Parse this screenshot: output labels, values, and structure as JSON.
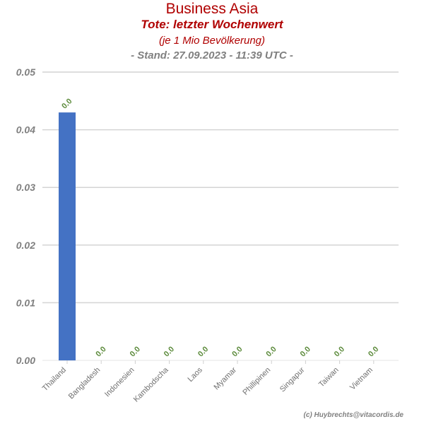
{
  "chart_data": {
    "type": "bar",
    "title": "Business Asia",
    "subtitle": "Tote: letzter Wochenwert",
    "subtitle2": "(je 1 Mio Bevölkerung)",
    "stand": "- Stand: 27.09.2023 - 11:39 UTC -",
    "categories": [
      "Thailand",
      "Bangladesh",
      "Indonesien",
      "Kambodscha",
      "Laos",
      "Myamar",
      "Phillipinen",
      "Singapur",
      "Taiwan",
      "Vietnam"
    ],
    "values": [
      0.043,
      0,
      0,
      0,
      0,
      0,
      0,
      0,
      0,
      0
    ],
    "data_labels": [
      "0.0",
      "0.0",
      "0.0",
      "0.0",
      "0.0",
      "0.0",
      "0.0",
      "0.0",
      "0.0",
      "0.0"
    ],
    "yticks": [
      "0.00",
      "0.01",
      "0.02",
      "0.03",
      "0.04",
      "0.05"
    ],
    "ylim": [
      0,
      0.05
    ],
    "grid": true,
    "legend": "none",
    "bar_color": "#4472c4",
    "label_color": "#5b8a3a",
    "credit": "(c) Huybrechts@vitacordis.de"
  }
}
